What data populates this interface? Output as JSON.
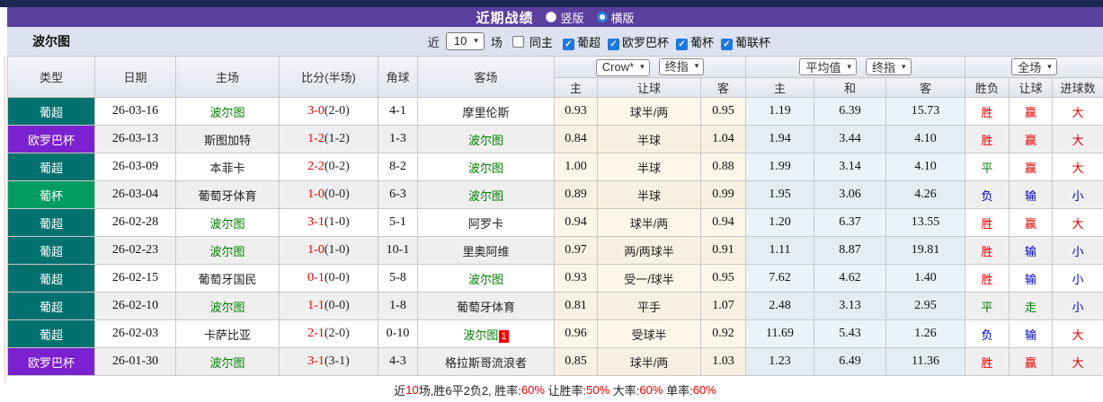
{
  "icons": {
    "check": "✓",
    "chevron": "▾"
  },
  "title_bar": {
    "title": "近期战绩",
    "radios": [
      {
        "label": "竖版",
        "checked": false
      },
      {
        "label": "横版",
        "checked": true
      }
    ]
  },
  "filter_bar": {
    "team": "波尔图",
    "near_label": "近",
    "count_value": "10",
    "count_suffix": "场",
    "same_home_label": "同主",
    "leagues": [
      {
        "label": "葡超",
        "checked": true
      },
      {
        "label": "欧罗巴杯",
        "checked": true
      },
      {
        "label": "葡杯",
        "checked": true
      },
      {
        "label": "葡联杯",
        "checked": true
      }
    ]
  },
  "table": {
    "main_headers": [
      "类型",
      "日期",
      "主场",
      "比分(半场)",
      "角球",
      "客场"
    ],
    "selects": {
      "company": "Crow*",
      "final1": "终指",
      "average": "平均值",
      "final2": "终指",
      "scope": "全场"
    },
    "sub_headers": [
      "主",
      "让球",
      "客",
      "主",
      "和",
      "客",
      "胜负",
      "让球",
      "进球数"
    ],
    "highlight_team": "波尔图",
    "league_colors": {
      "葡超": "#00716e",
      "欧罗巴杯": "#7b21cf",
      "葡杯": "#009a63"
    },
    "result_colors": {
      "胜": "#e60000",
      "平": "#008000",
      "负": "#0000cc",
      "赢": "#e60000",
      "输": "#0000cc",
      "走": "#008000",
      "大": "#e60000",
      "小": "#0000cc"
    },
    "rows": [
      {
        "league": "葡超",
        "date": "26-03-16",
        "home": "波尔图",
        "score": "3-0",
        "half": "(2-0)",
        "corner": "4-1",
        "away": "摩里伦斯",
        "odds": [
          "0.93",
          "球半/两",
          "0.95"
        ],
        "avg": [
          "1.19",
          "6.39",
          "15.73"
        ],
        "results": [
          "胜",
          "赢",
          "大"
        ]
      },
      {
        "league": "欧罗巴杯",
        "date": "26-03-13",
        "home": "斯图加特",
        "score": "1-2",
        "half": "(1-2)",
        "corner": "1-3",
        "away": "波尔图",
        "odds": [
          "0.84",
          "半球",
          "1.04"
        ],
        "avg": [
          "1.94",
          "3.44",
          "4.10"
        ],
        "results": [
          "胜",
          "赢",
          "大"
        ]
      },
      {
        "league": "葡超",
        "date": "26-03-09",
        "home": "本菲卡",
        "score": "2-2",
        "half": "(0-2)",
        "corner": "8-2",
        "away": "波尔图",
        "odds": [
          "1.00",
          "半球",
          "0.88"
        ],
        "avg": [
          "1.99",
          "3.14",
          "4.10"
        ],
        "results": [
          "平",
          "赢",
          "大"
        ]
      },
      {
        "league": "葡杯",
        "date": "26-03-04",
        "home": "葡萄牙体育",
        "score": "1-0",
        "half": "(0-0)",
        "corner": "6-3",
        "away": "波尔图",
        "odds": [
          "0.89",
          "半球",
          "0.99"
        ],
        "avg": [
          "1.95",
          "3.06",
          "4.26"
        ],
        "results": [
          "负",
          "输",
          "小"
        ]
      },
      {
        "league": "葡超",
        "date": "26-02-28",
        "home": "波尔图",
        "score": "3-1",
        "half": "(1-0)",
        "corner": "5-1",
        "away": "阿罗卡",
        "odds": [
          "0.94",
          "球半/两",
          "0.94"
        ],
        "avg": [
          "1.20",
          "6.37",
          "13.55"
        ],
        "results": [
          "胜",
          "赢",
          "大"
        ]
      },
      {
        "league": "葡超",
        "date": "26-02-23",
        "home": "波尔图",
        "score": "1-0",
        "half": "(1-0)",
        "corner": "10-1",
        "away": "里奥阿维",
        "odds": [
          "0.97",
          "两/两球半",
          "0.91"
        ],
        "avg": [
          "1.11",
          "8.87",
          "19.81"
        ],
        "results": [
          "胜",
          "输",
          "小"
        ]
      },
      {
        "league": "葡超",
        "date": "26-02-15",
        "home": "葡萄牙国民",
        "score": "0-1",
        "half": "(0-0)",
        "corner": "5-8",
        "away": "波尔图",
        "odds": [
          "0.93",
          "受一/球半",
          "0.95"
        ],
        "avg": [
          "7.62",
          "4.62",
          "1.40"
        ],
        "results": [
          "胜",
          "输",
          "小"
        ]
      },
      {
        "league": "葡超",
        "date": "26-02-10",
        "home": "波尔图",
        "score": "1-1",
        "half": "(0-0)",
        "corner": "1-8",
        "away": "葡萄牙体育",
        "odds": [
          "0.81",
          "平手",
          "1.07"
        ],
        "avg": [
          "2.48",
          "3.13",
          "2.95"
        ],
        "results": [
          "平",
          "走",
          "小"
        ]
      },
      {
        "league": "葡超",
        "date": "26-02-03",
        "home": "卡萨比亚",
        "score": "2-1",
        "half": "(2-0)",
        "corner": "0-10",
        "away": "波尔图",
        "away_mark": "1",
        "odds": [
          "0.96",
          "受球半",
          "0.92"
        ],
        "avg": [
          "11.69",
          "5.43",
          "1.26"
        ],
        "results": [
          "负",
          "输",
          "大"
        ]
      },
      {
        "league": "欧罗巴杯",
        "date": "26-01-30",
        "home": "波尔图",
        "score": "3-1",
        "half": "(3-1)",
        "corner": "4-3",
        "away": "格拉斯哥流浪者",
        "odds": [
          "0.85",
          "球半/两",
          "1.03"
        ],
        "avg": [
          "1.23",
          "6.49",
          "11.36"
        ],
        "results": [
          "胜",
          "赢",
          "大"
        ]
      }
    ],
    "summary_parts": [
      {
        "t": "近",
        "c": "dark"
      },
      {
        "t": "10",
        "c": "red"
      },
      {
        "t": "场,胜6平2负2, 胜率:",
        "c": "dark"
      },
      {
        "t": "60%",
        "c": "red"
      },
      {
        "t": " 让胜率:",
        "c": "dark"
      },
      {
        "t": "50%",
        "c": "red"
      },
      {
        "t": " 大率:",
        "c": "dark"
      },
      {
        "t": "60%",
        "c": "red"
      },
      {
        "t": " 单率:",
        "c": "dark"
      },
      {
        "t": "60%",
        "c": "red"
      }
    ]
  }
}
